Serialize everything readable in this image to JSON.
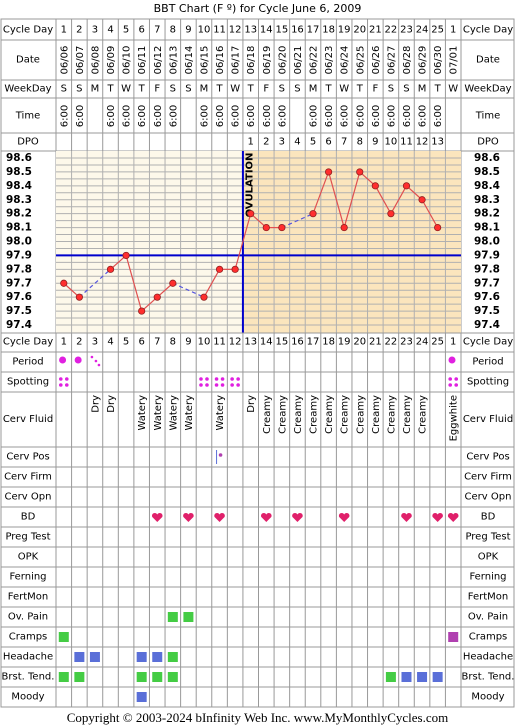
{
  "title": "BBT Chart (F º) for Cycle June 6, 2009",
  "copyright": "Copyright © 2003-2024 bInfinity Web Inc.    www.MyMonthlyCycles.com",
  "colors": {
    "border": "#999999",
    "grid": "#b0b0b0",
    "pre_fill": "#fdf8ea",
    "post_fill": "#fbe5bd",
    "temp_line": "#e05050",
    "dot_fill": "#ff2e2e",
    "dashed": "#5555dd",
    "coverline": "#0000cc",
    "ovulation_line": "#0000cc",
    "period": "#e020e0",
    "spotting": "#e020e0",
    "green": "#44cc44",
    "blue": "#5a6fd8",
    "purple": "#b040b0",
    "heart": "#e0206a"
  },
  "labels": {
    "cycle_day": "Cycle Day",
    "date": "Date",
    "weekday": "WeekDay",
    "time": "Time",
    "dpo": "DPO",
    "period": "Period",
    "spotting": "Spotting",
    "cerv_fluid": "Cerv Fluid",
    "cerv_pos": "Cerv Pos",
    "cerv_firm": "Cerv Firm",
    "cerv_opn": "Cerv Opn",
    "bd": "BD",
    "preg_test": "Preg Test",
    "opk": "OPK",
    "ferning": "Ferning",
    "fertmon": "FertMon",
    "ov_pain": "Ov. Pain",
    "cramps": "Cramps",
    "headache": "Headache",
    "brst_tend": "Brst. Tend.",
    "moody": "Moody",
    "ovulation": "OVULATION"
  },
  "chart_data": {
    "type": "line",
    "title": "BBT Chart (F º) for Cycle June 6, 2009",
    "x_label": "Cycle Day",
    "y_label": "",
    "y_range": [
      97.4,
      98.6
    ],
    "y_ticks": [
      "98.6",
      "98.5",
      "98.4",
      "98.3",
      "98.2",
      "98.1",
      "98.0",
      "97.9",
      "97.8",
      "97.7",
      "97.6",
      "97.5",
      "97.4"
    ],
    "cycle_days": [
      "1",
      "2",
      "3",
      "4",
      "5",
      "6",
      "7",
      "8",
      "9",
      "10",
      "11",
      "12",
      "13",
      "14",
      "15",
      "16",
      "17",
      "18",
      "19",
      "20",
      "21",
      "22",
      "23",
      "24",
      "25",
      "1"
    ],
    "dates": [
      "06/06",
      "06/07",
      "06/08",
      "06/09",
      "06/10",
      "06/11",
      "06/12",
      "06/13",
      "06/14",
      "06/15",
      "06/16",
      "06/17",
      "06/18",
      "06/19",
      "06/20",
      "06/21",
      "06/22",
      "06/23",
      "06/24",
      "06/25",
      "06/26",
      "06/27",
      "06/28",
      "06/29",
      "06/30",
      "07/01"
    ],
    "weekdays": [
      "S",
      "S",
      "M",
      "T",
      "W",
      "T",
      "F",
      "S",
      "S",
      "M",
      "T",
      "W",
      "T",
      "F",
      "S",
      "S",
      "M",
      "T",
      "W",
      "T",
      "F",
      "S",
      "S",
      "M",
      "T",
      "W"
    ],
    "times": [
      "6:00",
      "6:00",
      "",
      "6:00",
      "6:00",
      "6:00",
      "6:00",
      "6:00",
      "",
      "6:00",
      "6:00",
      "6:00",
      "6:00",
      "6:00",
      "6:00",
      "",
      "6:00",
      "6:00",
      "6:00",
      "6:00",
      "6:00",
      "6:00",
      "6:00",
      "6:00",
      "6:00",
      ""
    ],
    "dpo": [
      "",
      "",
      "",
      "",
      "",
      "",
      "",
      "",
      "",
      "",
      "",
      "",
      "1",
      "2",
      "3",
      "4",
      "5",
      "6",
      "7",
      "8",
      "9",
      "10",
      "11",
      "12",
      "13",
      ""
    ],
    "temperatures": [
      97.7,
      97.6,
      null,
      97.8,
      97.9,
      97.5,
      97.6,
      97.7,
      null,
      97.6,
      97.8,
      97.8,
      98.2,
      98.1,
      98.1,
      null,
      98.2,
      98.5,
      98.1,
      98.5,
      98.4,
      98.2,
      98.4,
      98.3,
      98.1,
      null
    ],
    "coverline": 97.9,
    "ovulation_day": 12,
    "grid": true
  },
  "rows": {
    "period": [
      "dot",
      "dot",
      "light",
      "",
      "",
      "",
      "",
      "",
      "",
      "",
      "",
      "",
      "",
      "",
      "",
      "",
      "",
      "",
      "",
      "",
      "",
      "",
      "",
      "",
      "",
      "dot"
    ],
    "spotting": [
      "yes",
      "",
      "",
      "",
      "",
      "",
      "",
      "",
      "",
      "yes",
      "yes",
      "yes",
      "",
      "",
      "",
      "",
      "",
      "",
      "",
      "",
      "",
      "",
      "",
      "",
      "",
      "yes"
    ],
    "cerv_fluid": [
      "",
      "",
      "Dry",
      "Dry",
      "",
      "Watery",
      "Watery",
      "Watery",
      "Watery",
      "",
      "Watery",
      "",
      "Dry",
      "Creamy",
      "Creamy",
      "Creamy",
      "Creamy",
      "Creamy",
      "Creamy",
      "Creamy",
      "Creamy",
      "Creamy",
      "Creamy",
      "Creamy",
      "",
      "Eggwhite"
    ],
    "cerv_pos": [
      "",
      "",
      "",
      "",
      "",
      "",
      "",
      "",
      "",
      "",
      "pos",
      "",
      "",
      "",
      "",
      "",
      "",
      "",
      "",
      "",
      "",
      "",
      "",
      "",
      "",
      ""
    ],
    "bd": [
      "",
      "",
      "",
      "",
      "",
      "",
      "yes",
      "",
      "yes",
      "",
      "yes",
      "",
      "",
      "yes",
      "",
      "yes",
      "",
      "",
      "yes",
      "",
      "",
      "",
      "yes",
      "",
      "yes",
      "yes"
    ],
    "ov_pain": [
      "",
      "",
      "",
      "",
      "",
      "",
      "",
      "yes",
      "yes",
      "",
      "",
      "",
      "",
      "",
      "",
      "",
      "",
      "",
      "",
      "",
      "",
      "",
      "",
      "",
      "",
      ""
    ],
    "cramps": [
      "green",
      "",
      "",
      "",
      "",
      "",
      "",
      "",
      "",
      "",
      "",
      "",
      "",
      "",
      "",
      "",
      "",
      "",
      "",
      "",
      "",
      "",
      "",
      "",
      "",
      "purple"
    ],
    "headache": [
      "",
      "blue",
      "blue",
      "",
      "",
      "blue",
      "blue",
      "green",
      "",
      "",
      "",
      "",
      "",
      "",
      "",
      "",
      "",
      "",
      "",
      "",
      "",
      "",
      "",
      "",
      "",
      ""
    ],
    "brst_tend": [
      "green",
      "green",
      "",
      "",
      "",
      "green",
      "green",
      "green",
      "",
      "",
      "",
      "",
      "",
      "",
      "",
      "",
      "",
      "",
      "",
      "",
      "",
      "green",
      "blue",
      "blue",
      "blue",
      ""
    ],
    "moody": [
      "",
      "",
      "",
      "",
      "",
      "blue",
      "",
      "",
      "",
      "",
      "",
      "",
      "",
      "",
      "",
      "",
      "",
      "",
      "",
      "",
      "",
      "",
      "",
      "",
      "",
      ""
    ]
  }
}
